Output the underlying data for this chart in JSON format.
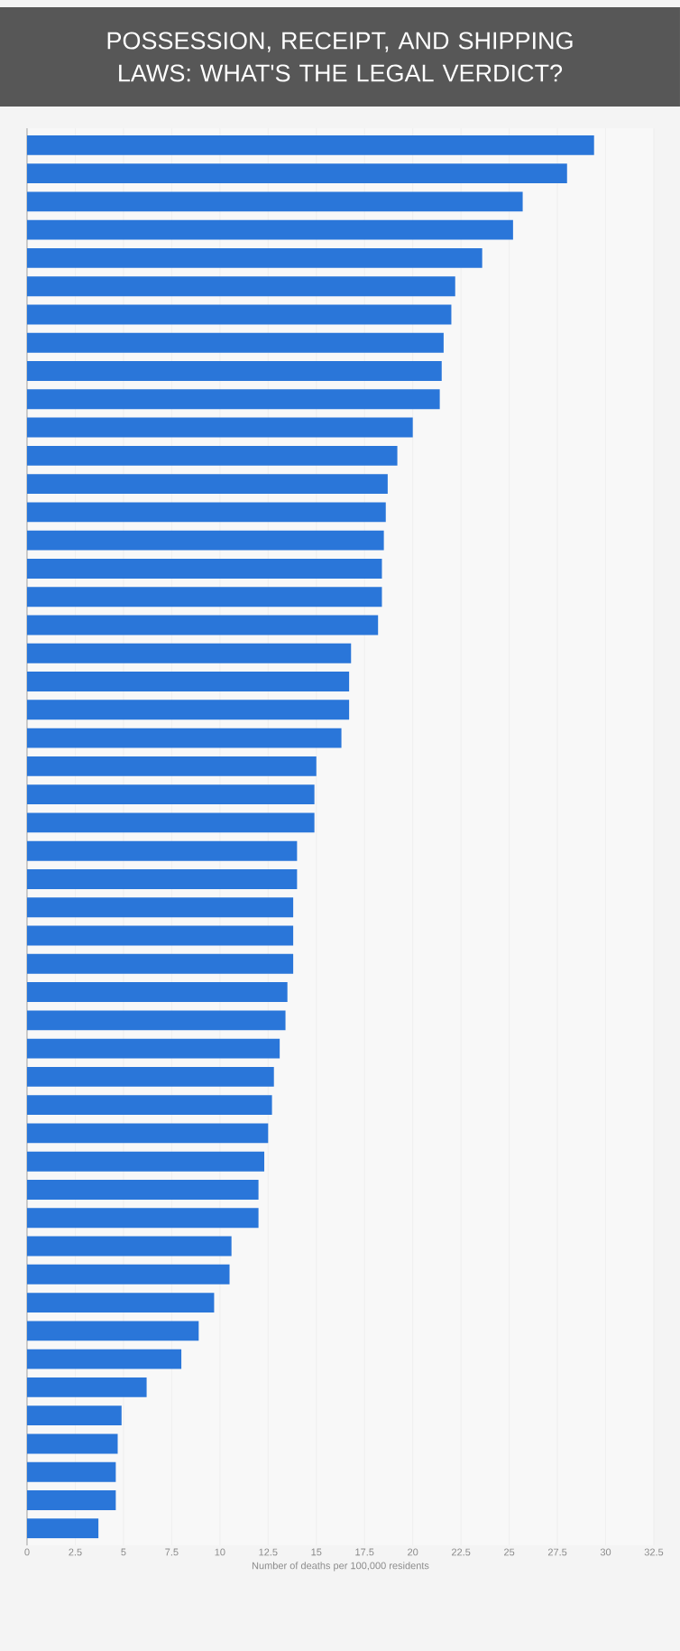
{
  "chart_data": {
    "type": "bar",
    "orientation": "horizontal",
    "title": "POSSESSION, RECEIPT, AND SHIPPING LAWS: WHAT'S THE LEGAL VERDICT?",
    "xlabel": "Number of deaths per 100,000 residents",
    "categories": [
      null,
      null,
      null,
      null,
      null,
      null,
      null,
      null,
      null,
      null,
      null,
      null,
      null,
      null,
      null,
      null,
      null,
      null,
      null,
      null,
      null,
      null,
      null,
      null,
      null,
      null,
      null,
      null,
      null,
      null,
      null,
      null,
      null,
      null,
      null,
      null,
      null,
      null,
      null,
      null,
      null,
      null,
      null,
      null,
      null,
      null,
      null,
      null,
      null,
      null
    ],
    "values": [
      29.4,
      28.0,
      25.7,
      25.2,
      23.6,
      22.2,
      22.0,
      21.6,
      21.5,
      21.4,
      20.0,
      19.2,
      18.7,
      18.6,
      18.5,
      18.4,
      18.4,
      18.2,
      16.8,
      16.7,
      16.7,
      16.3,
      15.0,
      14.9,
      14.9,
      14.0,
      14.0,
      13.8,
      13.8,
      13.8,
      13.5,
      13.4,
      13.1,
      12.8,
      12.7,
      12.5,
      12.3,
      12.0,
      12.0,
      10.6,
      10.5,
      9.7,
      8.9,
      8.0,
      6.2,
      4.9,
      4.7,
      4.6,
      4.6,
      3.7
    ],
    "color": "#2a76d9",
    "xlim": [
      0,
      32.5
    ],
    "xticks": [
      0,
      2.5,
      5,
      7.5,
      10,
      12.5,
      15,
      17.5,
      20,
      22.5,
      25,
      27.5,
      30,
      32.5
    ],
    "grid": "x"
  }
}
